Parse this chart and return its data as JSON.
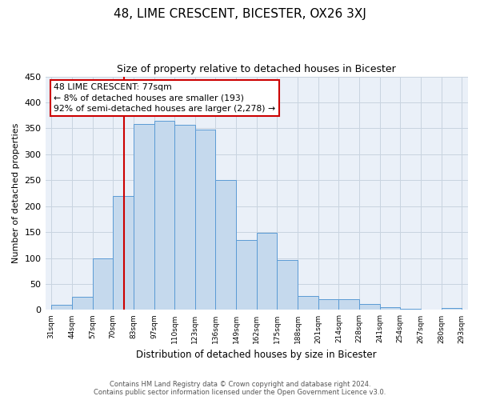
{
  "title": "48, LIME CRESCENT, BICESTER, OX26 3XJ",
  "subtitle": "Size of property relative to detached houses in Bicester",
  "xlabel": "Distribution of detached houses by size in Bicester",
  "ylabel": "Number of detached properties",
  "footer_line1": "Contains HM Land Registry data © Crown copyright and database right 2024.",
  "footer_line2": "Contains public sector information licensed under the Open Government Licence v3.0.",
  "bin_labels": [
    "31sqm",
    "44sqm",
    "57sqm",
    "70sqm",
    "83sqm",
    "97sqm",
    "110sqm",
    "123sqm",
    "136sqm",
    "149sqm",
    "162sqm",
    "175sqm",
    "188sqm",
    "201sqm",
    "214sqm",
    "228sqm",
    "241sqm",
    "254sqm",
    "267sqm",
    "280sqm",
    "293sqm"
  ],
  "bar_values": [
    10,
    25,
    100,
    220,
    358,
    365,
    357,
    348,
    250,
    135,
    148,
    96,
    27,
    20,
    21,
    11,
    5,
    2,
    0,
    3
  ],
  "bar_color": "#c5d9ed",
  "bar_edge_color": "#5b9bd5",
  "ylim": [
    0,
    450
  ],
  "yticks": [
    0,
    50,
    100,
    150,
    200,
    250,
    300,
    350,
    400,
    450
  ],
  "annotation_title": "48 LIME CRESCENT: 77sqm",
  "annotation_line1": "← 8% of detached houses are smaller (193)",
  "annotation_line2": "92% of semi-detached houses are larger (2,278) →",
  "annotation_box_color": "#ffffff",
  "annotation_border_color": "#cc0000",
  "red_line_color": "#cc0000",
  "background_color": "#ffffff",
  "plot_bg_color": "#eaf0f8",
  "grid_color": "#c8d4e0"
}
